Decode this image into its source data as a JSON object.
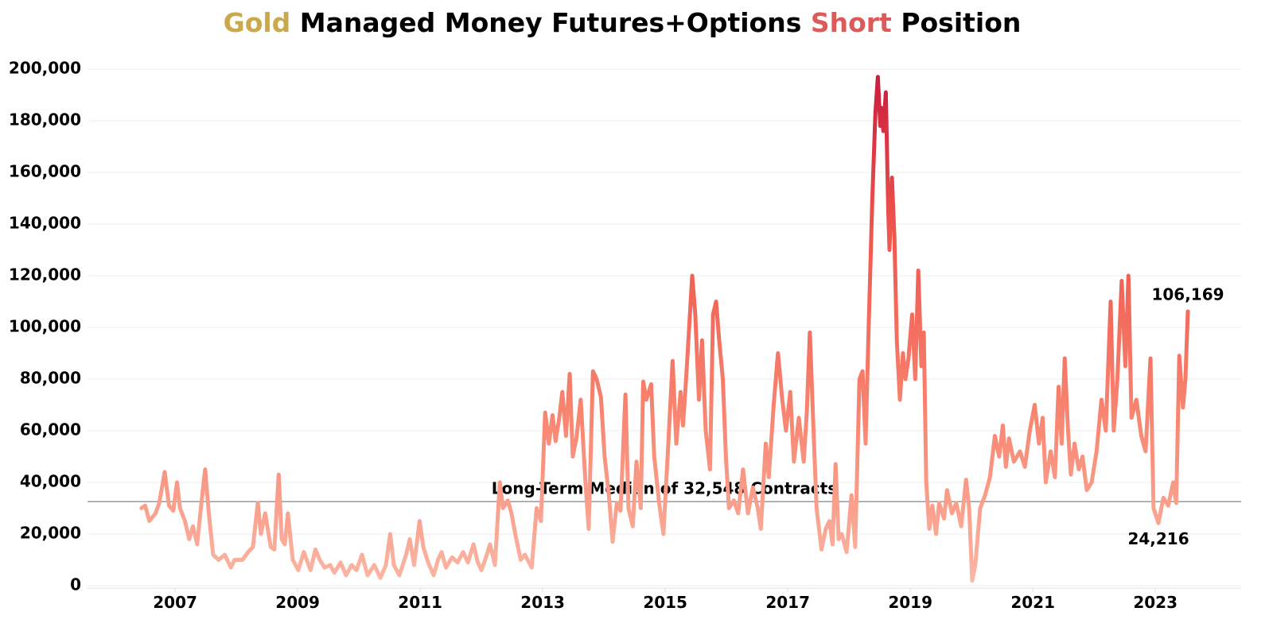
{
  "chart_data": {
    "type": "line",
    "title_parts": [
      {
        "text": "Gold",
        "color": "#c9a94b"
      },
      {
        "text": " Managed Money Futures+Options ",
        "color": "#000000"
      },
      {
        "text": "Short",
        "color": "#dd5a5a"
      },
      {
        "text": " Position",
        "color": "#000000"
      }
    ],
    "median": 32548,
    "median_label": "Long-Term Median of 32,548 Contracts",
    "median_color": "#999999",
    "xlim": [
      2005.57,
      2024.4
    ],
    "xticks": [
      2007,
      2009,
      2011,
      2013,
      2015,
      2017,
      2019,
      2021,
      2023
    ],
    "ylim": [
      -1000,
      208000
    ],
    "yticks": [
      0,
      {
        "value": 20000,
        "label": "20,000"
      },
      {
        "value": 40000,
        "label": "40,000"
      },
      {
        "value": 60000,
        "label": "60,000"
      },
      {
        "value": 80000,
        "label": "80,000"
      },
      {
        "value": 100000,
        "label": "100,000"
      },
      {
        "value": 120000,
        "label": "120,000"
      },
      {
        "value": 140000,
        "label": "140,000"
      },
      {
        "value": 160000,
        "label": "160,000"
      },
      {
        "value": 180000,
        "label": "180,000"
      },
      {
        "value": 200000,
        "label": "200,000"
      }
    ],
    "grid": true,
    "color_stops": [
      "#fbb8a6",
      "#f7836f",
      "#ee554d",
      "#c4143c"
    ],
    "x": [
      2006.45,
      2006.51,
      2006.58,
      2006.68,
      2006.74,
      2006.83,
      2006.9,
      2006.97,
      2007.03,
      2007.08,
      2007.16,
      2007.23,
      2007.29,
      2007.36,
      2007.42,
      2007.49,
      2007.55,
      2007.62,
      2007.71,
      2007.81,
      2007.91,
      2007.97,
      2008.1,
      2008.19,
      2008.27,
      2008.35,
      2008.4,
      2008.47,
      2008.56,
      2008.62,
      2008.69,
      2008.74,
      2008.79,
      2008.84,
      2008.92,
      2009.01,
      2009.1,
      2009.21,
      2009.29,
      2009.36,
      2009.44,
      2009.53,
      2009.6,
      2009.7,
      2009.79,
      2009.88,
      2009.96,
      2010.05,
      2010.14,
      2010.25,
      2010.35,
      2010.44,
      2010.51,
      2010.57,
      2010.66,
      2010.77,
      2010.83,
      2010.9,
      2010.99,
      2011.05,
      2011.13,
      2011.22,
      2011.29,
      2011.35,
      2011.42,
      2011.52,
      2011.61,
      2011.7,
      2011.78,
      2011.87,
      2011.94,
      2012.0,
      2012.06,
      2012.14,
      2012.22,
      2012.3,
      2012.35,
      2012.43,
      2012.49,
      2012.56,
      2012.64,
      2012.71,
      2012.82,
      2012.9,
      2012.97,
      2013.04,
      2013.1,
      2013.16,
      2013.21,
      2013.27,
      2013.32,
      2013.38,
      2013.44,
      2013.49,
      2013.55,
      2013.62,
      2013.69,
      2013.75,
      2013.82,
      2013.88,
      2013.95,
      2014.01,
      2014.08,
      2014.14,
      2014.21,
      2014.27,
      2014.35,
      2014.4,
      2014.47,
      2014.53,
      2014.6,
      2014.64,
      2014.69,
      2014.77,
      2014.82,
      2014.9,
      2014.97,
      2015.05,
      2015.12,
      2015.18,
      2015.25,
      2015.29,
      2015.34,
      2015.39,
      2015.44,
      2015.49,
      2015.55,
      2015.6,
      2015.66,
      2015.73,
      2015.78,
      2015.83,
      2015.88,
      2015.94,
      2015.99,
      2016.04,
      2016.12,
      2016.19,
      2016.27,
      2016.35,
      2016.43,
      2016.51,
      2016.56,
      2016.64,
      2016.69,
      2016.77,
      2016.84,
      2016.91,
      2016.97,
      2017.04,
      2017.1,
      2017.18,
      2017.26,
      2017.31,
      2017.36,
      2017.42,
      2017.47,
      2017.55,
      2017.62,
      2017.68,
      2017.73,
      2017.78,
      2017.83,
      2017.88,
      2017.96,
      2018.04,
      2018.1,
      2018.17,
      2018.22,
      2018.27,
      2018.32,
      2018.38,
      2018.43,
      2018.47,
      2018.51,
      2018.53,
      2018.56,
      2018.6,
      2018.64,
      2018.66,
      2018.7,
      2018.74,
      2018.78,
      2018.83,
      2018.88,
      2018.92,
      2018.97,
      2019.03,
      2019.08,
      2019.13,
      2019.18,
      2019.22,
      2019.26,
      2019.31,
      2019.36,
      2019.42,
      2019.47,
      2019.55,
      2019.6,
      2019.68,
      2019.75,
      2019.83,
      2019.91,
      2019.96,
      2020.01,
      2020.06,
      2020.14,
      2020.22,
      2020.3,
      2020.38,
      2020.45,
      2020.51,
      2020.56,
      2020.61,
      2020.69,
      2020.79,
      2020.87,
      2020.95,
      2021.03,
      2021.1,
      2021.16,
      2021.21,
      2021.29,
      2021.36,
      2021.42,
      2021.47,
      2021.52,
      2021.57,
      2021.62,
      2021.68,
      2021.75,
      2021.81,
      2021.88,
      2021.96,
      2022.04,
      2022.12,
      2022.19,
      2022.27,
      2022.32,
      2022.38,
      2022.45,
      2022.51,
      2022.56,
      2022.61,
      2022.69,
      2022.77,
      2022.84,
      2022.92,
      2022.97,
      2023.05,
      2023.13,
      2023.21,
      2023.29,
      2023.34,
      2023.39,
      2023.45,
      2023.49,
      2023.53
    ],
    "series": [
      {
        "values": [
          30000,
          31000,
          25000,
          28000,
          32000,
          44000,
          31000,
          29000,
          40000,
          30000,
          25000,
          18000,
          23000,
          16000,
          30000,
          45000,
          28000,
          12000,
          10000,
          12000,
          7000,
          10000,
          10000,
          13000,
          15000,
          32000,
          20000,
          28000,
          15000,
          14000,
          43000,
          18000,
          16000,
          28000,
          10000,
          6000,
          13000,
          6000,
          14000,
          10000,
          7000,
          8000,
          5000,
          9000,
          4000,
          8000,
          6000,
          12000,
          4000,
          8000,
          3000,
          8000,
          20000,
          8000,
          4000,
          12000,
          18000,
          8000,
          25000,
          15000,
          9000,
          4000,
          10000,
          13000,
          7000,
          11000,
          9000,
          13000,
          9000,
          16000,
          9000,
          6000,
          10000,
          16000,
          8000,
          40000,
          30000,
          33000,
          28000,
          19000,
          10000,
          12000,
          7000,
          30000,
          25000,
          67000,
          55000,
          66000,
          56000,
          65000,
          75000,
          58000,
          82000,
          50000,
          57000,
          72000,
          43000,
          22000,
          83000,
          80000,
          73000,
          50000,
          35000,
          17000,
          32000,
          29000,
          74000,
          30000,
          23000,
          48000,
          30000,
          79000,
          72000,
          78000,
          50000,
          32000,
          20000,
          55000,
          87000,
          55000,
          75000,
          62000,
          80000,
          100000,
          120000,
          105000,
          72000,
          95000,
          60000,
          45000,
          105000,
          110000,
          95000,
          80000,
          50000,
          30000,
          33000,
          28000,
          45000,
          28000,
          38000,
          30000,
          22000,
          55000,
          42000,
          70000,
          90000,
          72000,
          60000,
          75000,
          48000,
          65000,
          48000,
          67000,
          98000,
          60000,
          30000,
          14000,
          22000,
          25000,
          16000,
          47000,
          18000,
          20000,
          13000,
          35000,
          15000,
          80000,
          83000,
          55000,
          100000,
          150000,
          183000,
          197000,
          178000,
          185000,
          176000,
          191000,
          145000,
          130000,
          158000,
          135000,
          95000,
          72000,
          90000,
          80000,
          88000,
          105000,
          80000,
          122000,
          85000,
          98000,
          40000,
          22000,
          31000,
          20000,
          32000,
          26000,
          37000,
          28000,
          32000,
          23000,
          41000,
          30000,
          2000,
          8000,
          30000,
          35000,
          42000,
          58000,
          50000,
          62000,
          46000,
          57000,
          48000,
          52000,
          46000,
          60000,
          70000,
          55000,
          65000,
          40000,
          52000,
          42000,
          77000,
          55000,
          88000,
          62000,
          43000,
          55000,
          45000,
          50000,
          37000,
          40000,
          52000,
          72000,
          60000,
          110000,
          60000,
          80000,
          118000,
          85000,
          120000,
          65000,
          72000,
          58000,
          52000,
          88000,
          30000,
          24216,
          34000,
          31000,
          40000,
          32000,
          89000,
          69000,
          80000,
          106169
        ],
        "value_labels": [
          null,
          null,
          null,
          null,
          null,
          null,
          null,
          null,
          null,
          null,
          null,
          null,
          null,
          null,
          null,
          null,
          null,
          null,
          null,
          null,
          null,
          null,
          null,
          null,
          null,
          null,
          null,
          null,
          null,
          null,
          null,
          null,
          null,
          null,
          null,
          null,
          null,
          null,
          null,
          null,
          null,
          null,
          null,
          null,
          null,
          null,
          null,
          null,
          null,
          null,
          null,
          null,
          null,
          null,
          null,
          null,
          null,
          null,
          null,
          null,
          null,
          null,
          null,
          null,
          null,
          null,
          null,
          null,
          null,
          null,
          null,
          null,
          null,
          null,
          null,
          null,
          null,
          null,
          null,
          null,
          null,
          null,
          null,
          null,
          null,
          null,
          null,
          null,
          null,
          null,
          null,
          null,
          null,
          null,
          null,
          null,
          null,
          null,
          null,
          null,
          null,
          null,
          null,
          null,
          null,
          null,
          null,
          null,
          null,
          null,
          null,
          null,
          null,
          null,
          null,
          null,
          null,
          null,
          null,
          null,
          null,
          null,
          null,
          null,
          null,
          null,
          null,
          null,
          null,
          null,
          null,
          null,
          null,
          null,
          null,
          null,
          null,
          null,
          null,
          null,
          null,
          null,
          null,
          null,
          null,
          null,
          null,
          null,
          null,
          null,
          null,
          null,
          null,
          null,
          null,
          null,
          null,
          null,
          null,
          null,
          null,
          null,
          null,
          null,
          null,
          null,
          null,
          null,
          null,
          null,
          null,
          null,
          null,
          null,
          null,
          null,
          null,
          null,
          null,
          null,
          null,
          null,
          null,
          null,
          null,
          null,
          null,
          null,
          null,
          null,
          null,
          null,
          null,
          null,
          null,
          null,
          null,
          null,
          null,
          null,
          null,
          null,
          null,
          null,
          null,
          null,
          null,
          null,
          null,
          null,
          null,
          null,
          null,
          null,
          null,
          null,
          null,
          null,
          null,
          null,
          null,
          null,
          null,
          null,
          null,
          null,
          null,
          null,
          null,
          null,
          null,
          null,
          null,
          null,
          null,
          null,
          null,
          null,
          null,
          null,
          null,
          null,
          null,
          null,
          null,
          null,
          null,
          null,
          null,
          "24,216",
          null,
          null,
          null,
          null,
          null,
          null,
          null,
          "106,169"
        ]
      }
    ]
  }
}
